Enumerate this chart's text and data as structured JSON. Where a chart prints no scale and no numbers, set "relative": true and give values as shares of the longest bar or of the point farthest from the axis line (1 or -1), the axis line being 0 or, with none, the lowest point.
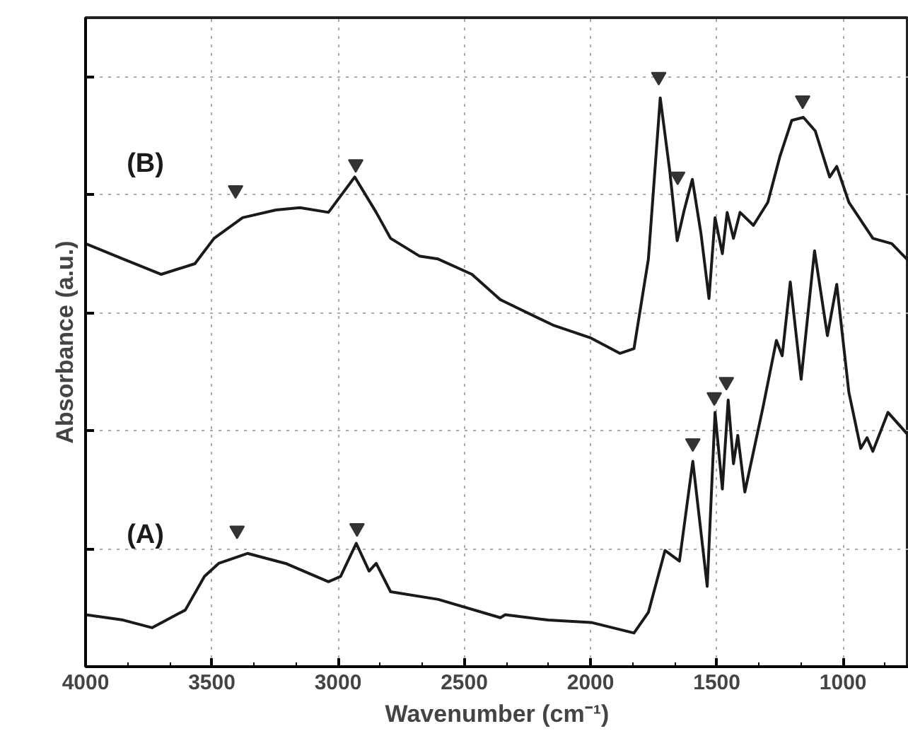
{
  "chart_data": {
    "type": "line",
    "relative": true,
    "xlabel": "Wavenumber (cm⁻¹)",
    "ylabel": "Absorbance (a.u.)",
    "xlim": [
      4000,
      740
    ],
    "xticks": [
      4000,
      3500,
      3000,
      2500,
      2000,
      1500,
      1000
    ],
    "grid": true,
    "marker": "none",
    "line_style": "solid",
    "series": [
      {
        "name": "(B)",
        "color": "#1a1a1a",
        "x": [
          4000,
          3851,
          3700,
          3567,
          3491,
          3378,
          3246,
          3151,
          3038,
          2934,
          2849,
          2792,
          2678,
          2604,
          2470,
          2357,
          2338,
          2149,
          1998,
          1884,
          1828,
          1771,
          1724,
          1686,
          1657,
          1629,
          1597,
          1563,
          1531,
          1507,
          1478,
          1459,
          1434,
          1408,
          1355,
          1298,
          1250,
          1203,
          1157,
          1110,
          1053,
          1025,
          977,
          882,
          807,
          741
        ],
        "values": [
          0.717,
          0.691,
          0.665,
          0.683,
          0.726,
          0.761,
          0.774,
          0.778,
          0.77,
          0.83,
          0.77,
          0.726,
          0.696,
          0.691,
          0.665,
          0.622,
          0.618,
          0.579,
          0.557,
          0.531,
          0.539,
          0.691,
          0.964,
          0.839,
          0.722,
          0.774,
          0.826,
          0.735,
          0.624,
          0.761,
          0.7,
          0.77,
          0.726,
          0.77,
          0.748,
          0.787,
          0.865,
          0.926,
          0.931,
          0.908,
          0.83,
          0.848,
          0.787,
          0.726,
          0.717,
          0.688
        ]
      },
      {
        "name": "(A)",
        "color": "#1a1a1a",
        "x": [
          4000,
          3851,
          3737,
          3605,
          3529,
          3473,
          3359,
          3208,
          3038,
          2990,
          2928,
          2877,
          2849,
          2792,
          2603,
          2357,
          2338,
          2168,
          1998,
          1828,
          1771,
          1705,
          1648,
          1595,
          1538,
          1507,
          1478,
          1455,
          1434,
          1417,
          1389,
          1317,
          1264,
          1241,
          1209,
          1166,
          1113,
          1062,
          1025,
          977,
          930,
          905,
          882,
          822,
          741
        ],
        "values": [
          0.088,
          0.079,
          0.066,
          0.096,
          0.153,
          0.175,
          0.192,
          0.175,
          0.144,
          0.153,
          0.209,
          0.162,
          0.175,
          0.127,
          0.114,
          0.083,
          0.088,
          0.079,
          0.075,
          0.057,
          0.092,
          0.197,
          0.179,
          0.348,
          0.136,
          0.431,
          0.301,
          0.452,
          0.344,
          0.392,
          0.296,
          0.44,
          0.553,
          0.527,
          0.652,
          0.487,
          0.705,
          0.561,
          0.648,
          0.465,
          0.37,
          0.388,
          0.365,
          0.431,
          0.392
        ]
      },
      {
        "type": "scatter",
        "marker": "triangle",
        "color": "#333333",
        "x": [
          3406,
          2930,
          1730,
          1655,
          1160,
          3400,
          2925,
          1595,
          1510,
          1462
        ],
        "values": [
          0.808,
          0.852,
          1.0,
          0.831,
          0.96,
          0.231,
          0.235,
          0.379,
          0.457,
          0.483
        ]
      }
    ]
  }
}
